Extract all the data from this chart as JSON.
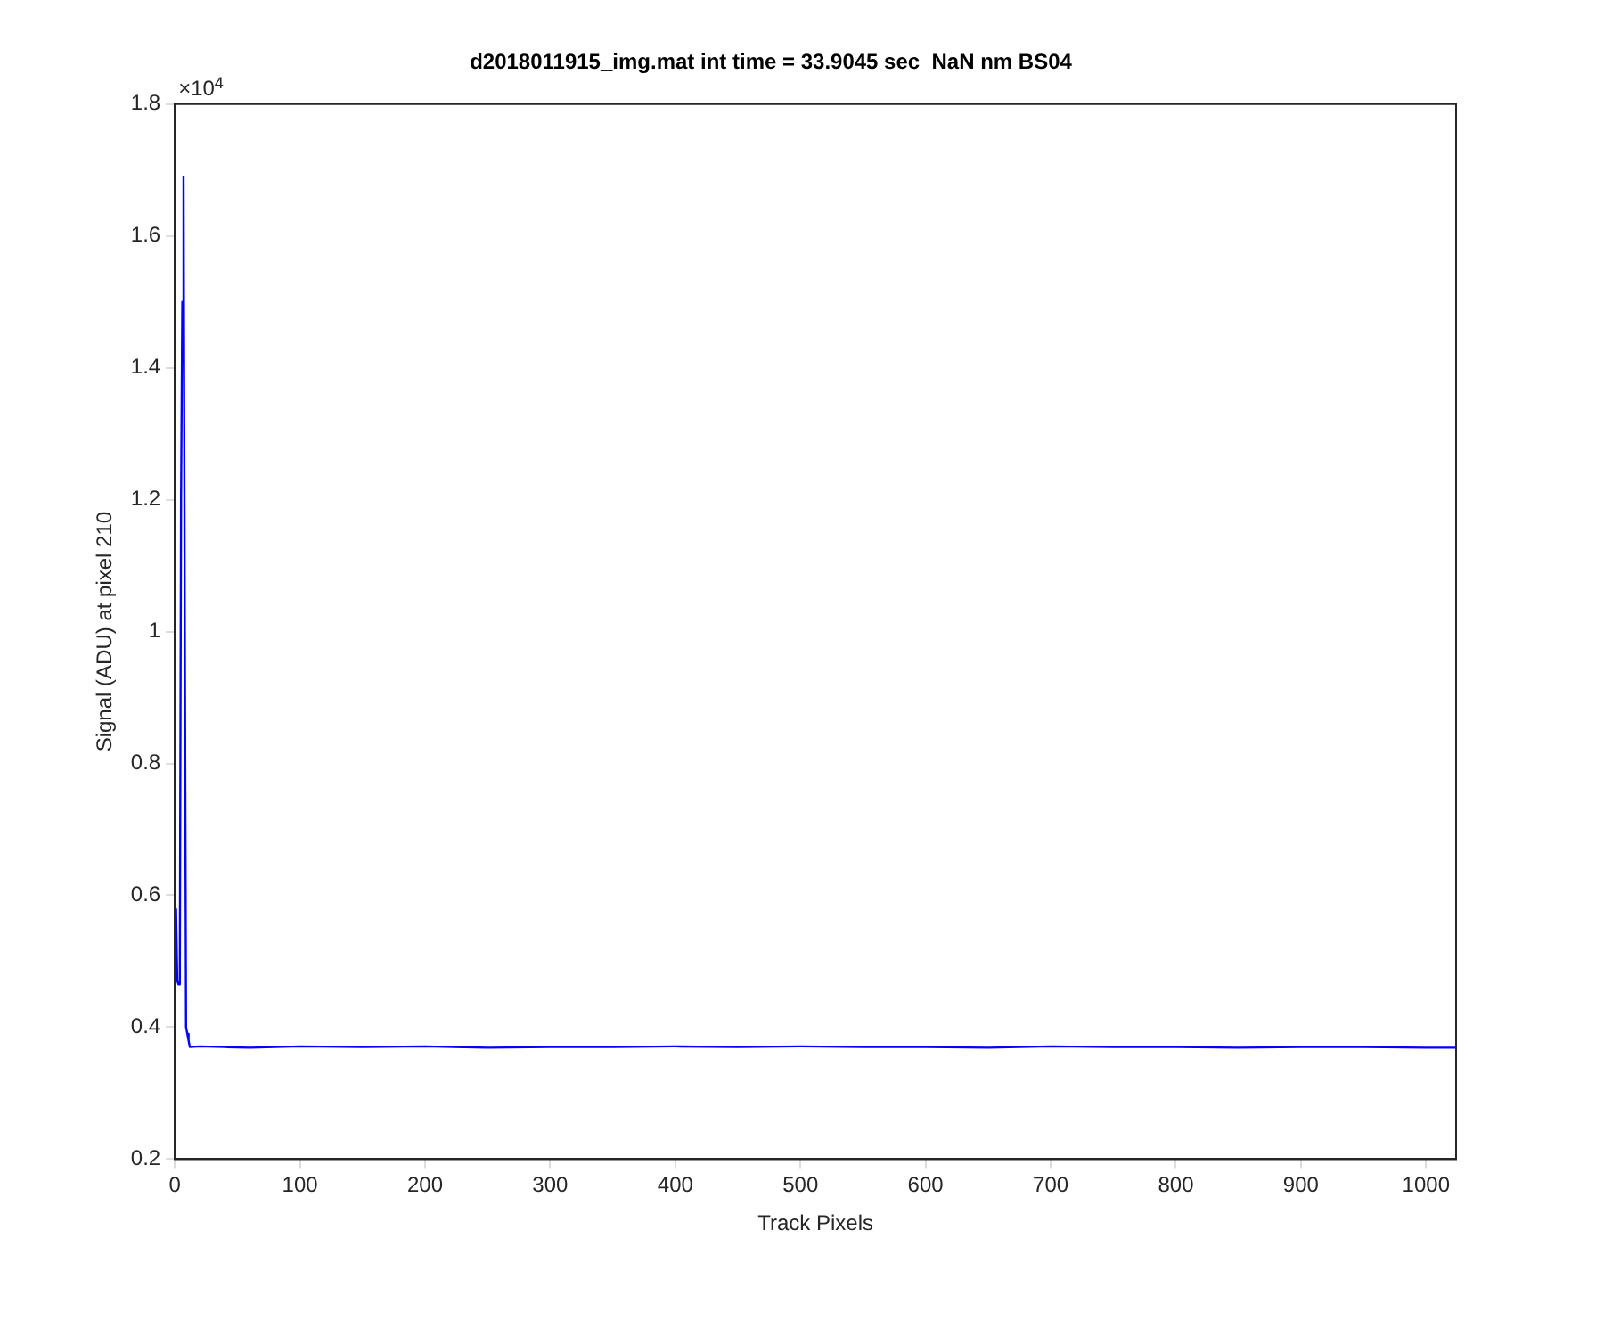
{
  "chart_data": {
    "type": "line",
    "title": "d2018011915_img.mat int time = 33.9045 sec  NaN nm BS04",
    "xlabel": "Track Pixels",
    "ylabel": "Signal (ADU) at pixel 210",
    "annotations": [
      "×10$^{4}$"
    ],
    "x": [
      1,
      2,
      3,
      4,
      5,
      6,
      7,
      8,
      9,
      10,
      11,
      12,
      20,
      40,
      60,
      80,
      100,
      150,
      200,
      250,
      300,
      350,
      400,
      450,
      500,
      550,
      600,
      650,
      700,
      750,
      800,
      850,
      900,
      950,
      1000,
      1024
    ],
    "series": [
      {
        "color": "#0000ff",
        "values": [
          0.58,
          0.47,
          0.465,
          0.47,
          1.2,
          1.5,
          1.69,
          1.0,
          0.4,
          0.39,
          0.38,
          0.37,
          0.371,
          0.37,
          0.369,
          0.37,
          0.371,
          0.37,
          0.371,
          0.369,
          0.37,
          0.37,
          0.371,
          0.37,
          0.371,
          0.37,
          0.37,
          0.369,
          0.371,
          0.37,
          0.37,
          0.369,
          0.37,
          0.37,
          0.369,
          0.369
        ]
      }
    ],
    "xlim": [
      0,
      1024
    ],
    "xticks": [
      0,
      100,
      200,
      300,
      400,
      500,
      600,
      700,
      800,
      900,
      1000
    ],
    "ylim": [
      0.2,
      1.8
    ],
    "yticks": [
      0.2,
      0.4,
      0.6,
      0.8,
      1,
      1.2,
      1.4,
      1.6,
      1.8
    ],
    "grid": false,
    "legend": false,
    "marker": "none",
    "line_style": "solid"
  }
}
